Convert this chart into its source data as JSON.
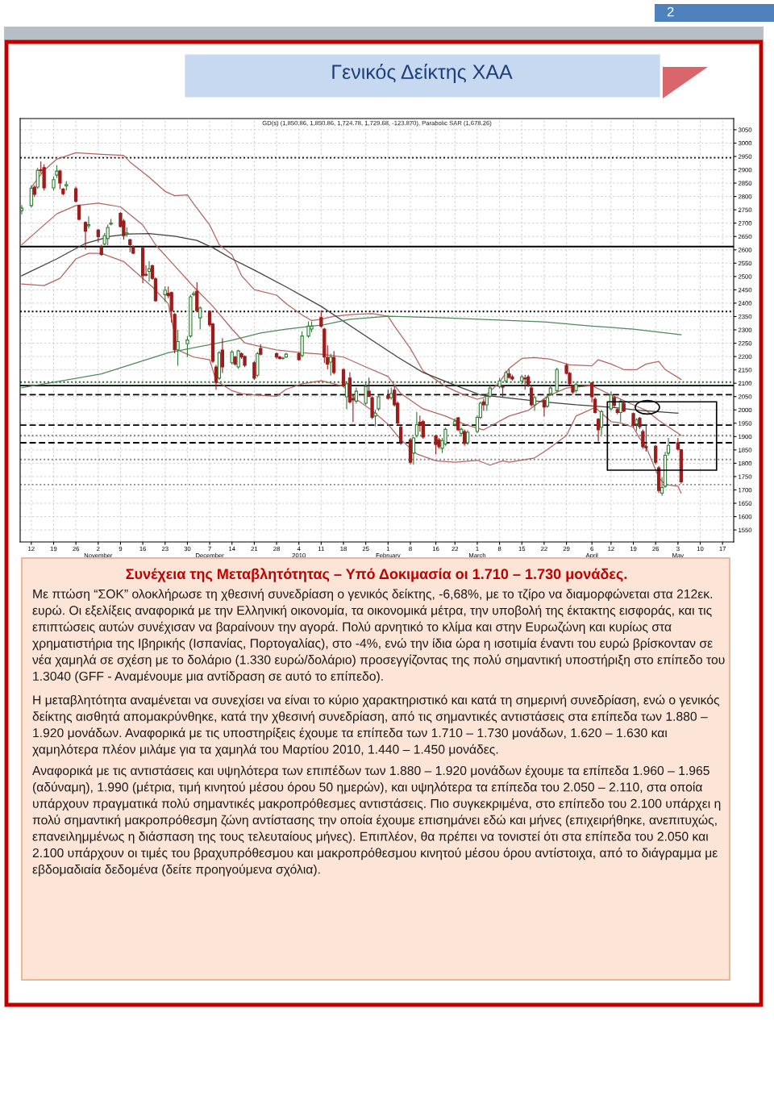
{
  "chart_data": {
    "type": "candlestick",
    "title": "Γενικός Δείκτης ΧΑΑ",
    "subtitle": "GD(s) (1,850.86, 1,850.86, 1,724.78, 1,729.68, -123.870), Parabolic SAR (1,678.26)",
    "annotations": [
      "Συνέχεια της Μεταβλητότητας – Υπό Δοκιμασία οι 1.710 – 1.730 μονάδες.",
      "Με πτώση “ΣΟΚ” ολοκλήρωσε τη χθεσινή συνεδρίαση ο γενικός δείκτης, -6,68%, με το τζίρο να διαμορφώνεται στα 212εκ. ευρώ. Οι εξελίξεις αναφορικά με την Ελληνική οικονομία, τα οικονομικά μέτρα, την υποβολή της έκτακτης εισφοράς, και τις επιπτώσεις αυτών συνέχισαν να βαραίνουν την αγορά. Πολύ αρνητικό το κλίμα και στην Ευρωζώνη και κυρίως στα χρηματιστήρια της Ιβηρικής (Ισπανίας, Πορτογαλίας), στο -4%, ενώ την ίδια ώρα η ισοτιμία έναντι του ευρώ βρίσκονταν σε νέα χαμηλά σε σχέση με το δολάριο (1.330 ευρώ/δολάριο) προσεγγίζοντας της πολύ σημαντική υποστήριξη στο επίπεδο του 1.3040 (GFF - Αναμένουμε μια αντίδραση σε αυτό το επίπεδο).",
      "Η μεταβλητότητα αναμένεται να συνεχίσει να είναι το κύριο χαρακτηριστικό και κατά τη σημερινή συνεδρίαση, ενώ ο γενικός δείκτης αισθητά απομακρύνθηκε, κατά την χθεσινή συνεδρίαση, από τις σημαντικές αντιστάσεις στα επίπεδα των 1.880 – 1.920 μονάδων. Αναφορικά με τις υποστηρίξεις έχουμε τα επίπεδα των 1.710 – 1.730 μονάδων, 1.620 – 1.630 και χαμηλότερα πλέον μιλάμε για τα χαμηλά του Μαρτίου 2010, 1.440 – 1.450 μονάδες.",
      "Αναφορικά με τις αντιστάσεις και υψηλότερα των επιπέδων των 1.880 – 1.920 μονάδων έχουμε τα επίπεδα 1.960 – 1.965 (αδύναμη), 1.990 (μέτρια, τιμή κινητού μέσου όρου 50 ημερών), και υψηλότερα τα επίπεδα του 2.050 – 2.110, στα οποία υπάρχουν πραγματικά πολύ σημαντικές μακροπρόθεσμες αντιστάσεις. Πιο συγκεκριμένα, στο επίπεδο του 2.100 υπάρχει η πολύ σημαντική μακροπρόθεσμη ζώνη αντίστασης την οποία έχουμε επισημάνει εδώ και μήνες (επιχειρήθηκε, ανεπιτυχώς, επανειλημμένως η διάσπαση της τους τελευταίους μήνες). Επιπλέον, θα πρέπει να τονιστεί ότι στα επίπεδα του 2.050 και 2.100 υπάρχουν οι τιμές του βραχυπρόθεσμου και μακροπρόθεσμου κινητού μέσου όρου αντίστοιχα, από το διάγραμμα με εβδομαδιαία δεδομένα (δείτε προηγούμενα σχόλια).",
      "2"
    ],
    "x": [
      "2009-10-09",
      "2009-10-12",
      "2009-10-13",
      "2009-10-14",
      "2009-10-15",
      "2009-10-16",
      "2009-10-19",
      "2009-10-20",
      "2009-10-21",
      "2009-10-22",
      "2009-10-23",
      "2009-10-26",
      "2009-10-27",
      "2009-10-29",
      "2009-10-30",
      "2009-11-02",
      "2009-11-03",
      "2009-11-04",
      "2009-11-05",
      "2009-11-06",
      "2009-11-09",
      "2009-11-10",
      "2009-11-11",
      "2009-11-12",
      "2009-11-13",
      "2009-11-16",
      "2009-11-17",
      "2009-11-18",
      "2009-11-19",
      "2009-11-20",
      "2009-11-23",
      "2009-11-24",
      "2009-11-25",
      "2009-11-26",
      "2009-11-27",
      "2009-11-30",
      "2009-12-01",
      "2009-12-02",
      "2009-12-03",
      "2009-12-04",
      "2009-12-07",
      "2009-12-08",
      "2009-12-09",
      "2009-12-10",
      "2009-12-11",
      "2009-12-14",
      "2009-12-15",
      "2009-12-16",
      "2009-12-17",
      "2009-12-18",
      "2009-12-21",
      "2009-12-22",
      "2009-12-23",
      "2009-12-28",
      "2009-12-29",
      "2009-12-30",
      "2009-12-31",
      "2010-01-04",
      "2010-01-05",
      "2010-01-07",
      "2010-01-08",
      "2010-01-11",
      "2010-01-12",
      "2010-01-13",
      "2010-01-14",
      "2010-01-15",
      "2010-01-18",
      "2010-01-19",
      "2010-01-20",
      "2010-01-21",
      "2010-01-22",
      "2010-01-25",
      "2010-01-26",
      "2010-01-27",
      "2010-01-28",
      "2010-01-29",
      "2010-02-01",
      "2010-02-02",
      "2010-02-03",
      "2010-02-04",
      "2010-02-05",
      "2010-02-08",
      "2010-02-09",
      "2010-02-10",
      "2010-02-11",
      "2010-02-12",
      "2010-02-16",
      "2010-02-17",
      "2010-02-18",
      "2010-02-19",
      "2010-02-22",
      "2010-02-23",
      "2010-02-24",
      "2010-02-25",
      "2010-02-26",
      "2010-03-01",
      "2010-03-02",
      "2010-03-03",
      "2010-03-04",
      "2010-03-05",
      "2010-03-08",
      "2010-03-09",
      "2010-03-10",
      "2010-03-11",
      "2010-03-12",
      "2010-03-15",
      "2010-03-16",
      "2010-03-17",
      "2010-03-18",
      "2010-03-19",
      "2010-03-22",
      "2010-03-23",
      "2010-03-24",
      "2010-03-26",
      "2010-03-29",
      "2010-03-30",
      "2010-03-31",
      "2010-04-01",
      "2010-04-06",
      "2010-04-07",
      "2010-04-08",
      "2010-04-09",
      "2010-04-12",
      "2010-04-13",
      "2010-04-14",
      "2010-04-15",
      "2010-04-16",
      "2010-04-19",
      "2010-04-20",
      "2010-04-21",
      "2010-04-22",
      "2010-04-23",
      "2010-04-26",
      "2010-04-27",
      "2010-04-28",
      "2010-04-29",
      "2010-04-30",
      "2010-05-03",
      "2010-05-04"
    ],
    "ohlc": [
      [
        2747,
        2766,
        2735,
        2756
      ],
      [
        2766,
        2840,
        2760,
        2831
      ],
      [
        2835,
        2840,
        2800,
        2808
      ],
      [
        2835,
        2905,
        2830,
        2898
      ],
      [
        2900,
        2929,
        2887,
        2897
      ],
      [
        2908,
        2919,
        2824,
        2832
      ],
      [
        2832,
        2874,
        2824,
        2863
      ],
      [
        2880,
        2916,
        2871,
        2895
      ],
      [
        2895,
        2898,
        2829,
        2850
      ],
      [
        2827,
        2830,
        2806,
        2810
      ],
      [
        2840,
        2856,
        2824,
        2845
      ],
      [
        2829,
        2835,
        2779,
        2782
      ],
      [
        2766,
        2768,
        2712,
        2714
      ],
      [
        2703,
        2705,
        2603,
        2670
      ],
      [
        2690,
        2724,
        2682,
        2694
      ],
      [
        2674,
        2677,
        2630,
        2649
      ],
      [
        2611,
        2617,
        2580,
        2582
      ],
      [
        2621,
        2661,
        2619,
        2653
      ],
      [
        2642,
        2693,
        2619,
        2684
      ],
      [
        2696,
        2714,
        2693,
        2700
      ],
      [
        2737,
        2740,
        2685,
        2687
      ],
      [
        2708,
        2714,
        2640,
        2653
      ],
      [
        2659,
        2682,
        2651,
        2663
      ],
      [
        2638,
        2640,
        2593,
        2619
      ],
      [
        2611,
        2614,
        2585,
        2587
      ],
      [
        2606,
        2609,
        2477,
        2503
      ],
      [
        2508,
        2540,
        2503,
        2505
      ],
      [
        2519,
        2556,
        2482,
        2529
      ],
      [
        2540,
        2543,
        2490,
        2493
      ],
      [
        2491,
        2495,
        2407,
        2409
      ],
      [
        2432,
        2461,
        2407,
        2449
      ],
      [
        2437,
        2461,
        2420,
        2428
      ],
      [
        2440,
        2442,
        2330,
        2372
      ],
      [
        2358,
        2361,
        2214,
        2225
      ],
      [
        2225,
        2298,
        2167,
        2256
      ],
      [
        2248,
        2275,
        2200,
        2262
      ],
      [
        2277,
        2430,
        2272,
        2424
      ],
      [
        2432,
        2443,
        2428,
        2437
      ],
      [
        2445,
        2477,
        2369,
        2372
      ],
      [
        2345,
        2387,
        2303,
        2382
      ],
      [
        2369,
        2372,
        2314,
        2319
      ],
      [
        2322,
        2325,
        2177,
        2182
      ],
      [
        2161,
        2167,
        2077,
        2103
      ],
      [
        2119,
        2219,
        2114,
        2214
      ],
      [
        2224,
        2267,
        2140,
        2161
      ],
      [
        2177,
        2222,
        2172,
        2217
      ],
      [
        2198,
        2201,
        2167,
        2172
      ],
      [
        2161,
        2224,
        2156,
        2221
      ],
      [
        2211,
        2214,
        2193,
        2198
      ],
      [
        2200,
        2203,
        2162,
        2167
      ],
      [
        2177,
        2182,
        2114,
        2119
      ],
      [
        2130,
        2216,
        2125,
        2211
      ],
      [
        2230,
        2245,
        2206,
        2209
      ],
      [
        2211,
        2214,
        2193,
        2198
      ],
      [
        2198,
        2201,
        2190,
        2193
      ],
      [
        2193,
        2196,
        2190,
        2194
      ],
      [
        2198,
        2212,
        2196,
        2209
      ],
      [
        2211,
        2214,
        2185,
        2188
      ],
      [
        2204,
        2293,
        2199,
        2277
      ],
      [
        2277,
        2330,
        2272,
        2314
      ],
      [
        2303,
        2330,
        2293,
        2314
      ],
      [
        2346,
        2372,
        2309,
        2314
      ],
      [
        2303,
        2306,
        2177,
        2198
      ],
      [
        2196,
        2240,
        2154,
        2172
      ],
      [
        2179,
        2209,
        2130,
        2198
      ],
      [
        2196,
        2219,
        2135,
        2140
      ],
      [
        2151,
        2154,
        2088,
        2091
      ],
      [
        2049,
        2103,
        2004,
        2098
      ],
      [
        2119,
        2140,
        2025,
        2030
      ],
      [
        2043,
        2054,
        1956,
        2037
      ],
      [
        2033,
        2082,
        2025,
        2070
      ],
      [
        2025,
        2103,
        2020,
        2088
      ],
      [
        2070,
        2119,
        2049,
        2051
      ],
      [
        2046,
        2049,
        1967,
        1972
      ],
      [
        1977,
        1998,
        1940,
        1988
      ],
      [
        2004,
        2054,
        1998,
        2049
      ],
      [
        2053,
        2075,
        2040,
        2043
      ],
      [
        2046,
        2082,
        2040,
        2061
      ],
      [
        2074,
        2088,
        2014,
        2019
      ],
      [
        2025,
        2030,
        1946,
        1951
      ],
      [
        1935,
        1940,
        1870,
        1880
      ],
      [
        1888,
        1893,
        1798,
        1804
      ],
      [
        1838,
        1898,
        1796,
        1895
      ],
      [
        1904,
        1991,
        1898,
        1944
      ],
      [
        1954,
        1977,
        1920,
        1944
      ],
      [
        1956,
        1961,
        1893,
        1898
      ],
      [
        1902,
        1906,
        1835,
        1870
      ],
      [
        1888,
        1893,
        1856,
        1862
      ],
      [
        1856,
        1893,
        1840,
        1885
      ],
      [
        1872,
        1932,
        1867,
        1927
      ],
      [
        1946,
        1967,
        1940,
        1958
      ],
      [
        1970,
        1972,
        1922,
        1925
      ],
      [
        1912,
        1932,
        1903,
        1927
      ],
      [
        1919,
        1925,
        1867,
        1874
      ],
      [
        1877,
        1922,
        1870,
        1916
      ],
      [
        1919,
        1977,
        1914,
        1972
      ],
      [
        1972,
        2030,
        1967,
        2025
      ],
      [
        2030,
        2040,
        1998,
        2019
      ],
      [
        2019,
        2056,
        1998,
        2051
      ],
      [
        2051,
        2088,
        2046,
        2082
      ],
      [
        2088,
        2119,
        2082,
        2109
      ],
      [
        2088,
        2093,
        2051,
        2085
      ],
      [
        2109,
        2145,
        2103,
        2140
      ],
      [
        2135,
        2151,
        2119,
        2122
      ],
      [
        2124,
        2130,
        2112,
        2116
      ],
      [
        2109,
        2130,
        2098,
        2124
      ],
      [
        2119,
        2130,
        2077,
        2116
      ],
      [
        2124,
        2130,
        2088,
        2093
      ],
      [
        2082,
        2088,
        2014,
        2019
      ],
      [
        2019,
        2051,
        1998,
        2046
      ],
      [
        2035,
        2040,
        1977,
        2011
      ],
      [
        2014,
        2056,
        2009,
        2046
      ],
      [
        2061,
        2093,
        2056,
        2082
      ],
      [
        2072,
        2156,
        2067,
        2151
      ],
      [
        2167,
        2172,
        2135,
        2137
      ],
      [
        2137,
        2140,
        2093,
        2098
      ],
      [
        2088,
        2093,
        2061,
        2067
      ],
      [
        2072,
        2100,
        2067,
        2095
      ],
      [
        2101,
        2103,
        2030,
        2049
      ],
      [
        2040,
        2046,
        1988,
        1990
      ],
      [
        1965,
        1967,
        1883,
        1925
      ],
      [
        1935,
        1998,
        1909,
        1993
      ],
      [
        2004,
        2067,
        1998,
        2056
      ],
      [
        2046,
        2051,
        2009,
        2017
      ],
      [
        2001,
        2004,
        1985,
        1990
      ],
      [
        1990,
        2040,
        1956,
        2033
      ],
      [
        2025,
        2030,
        1993,
        1996
      ],
      [
        1986,
        1988,
        1935,
        1941
      ],
      [
        1948,
        1967,
        1922,
        1962
      ],
      [
        1969,
        1972,
        1930,
        1937
      ],
      [
        1919,
        1925,
        1856,
        1862
      ],
      [
        1862,
        1945,
        1845,
        1858
      ],
      [
        1864,
        1867,
        1798,
        1804
      ],
      [
        1783,
        1788,
        1690,
        1698
      ],
      [
        1688,
        1746,
        1680,
        1709
      ],
      [
        1714,
        1841,
        1709,
        1830
      ],
      [
        1838,
        1893,
        1830,
        1867
      ],
      [
        1877,
        1893,
        1849,
        1853
      ],
      [
        1851,
        1851,
        1725,
        1730
      ]
    ],
    "colors": [
      "#2e7d32",
      "#2e7d32",
      "#9b1c1c",
      "#2e7d32",
      "#9b1c1c",
      "#9b1c1c",
      "#2e7d32",
      "#2e7d32",
      "#9b1c1c",
      "#9b1c1c",
      "#2e7d32",
      "#9b1c1c",
      "#9b1c1c",
      "#9b1c1c",
      "#2e7d32",
      "#9b1c1c",
      "#9b1c1c",
      "#2e7d32",
      "#2e7d32",
      "#2e7d32",
      "#9b1c1c",
      "#9b1c1c",
      "#2e7d32",
      "#9b1c1c",
      "#9b1c1c",
      "#9b1c1c",
      "#9b1c1c",
      "#2e7d32",
      "#9b1c1c",
      "#9b1c1c",
      "#2e7d32",
      "#9b1c1c",
      "#9b1c1c",
      "#9b1c1c",
      "#2e7d32",
      "#2e7d32",
      "#2e7d32",
      "#2e7d32",
      "#9b1c1c",
      "#2e7d32",
      "#9b1c1c",
      "#9b1c1c",
      "#9b1c1c",
      "#2e7d32",
      "#9b1c1c",
      "#2e7d32",
      "#9b1c1c",
      "#2e7d32",
      "#9b1c1c",
      "#9b1c1c",
      "#9b1c1c",
      "#2e7d32",
      "#9b1c1c",
      "#9b1c1c",
      "#9b1c1c",
      "#2e7d32",
      "#2e7d32",
      "#9b1c1c",
      "#2e7d32",
      "#2e7d32",
      "#2e7d32",
      "#9b1c1c",
      "#9b1c1c",
      "#9b1c1c",
      "#2e7d32",
      "#9b1c1c",
      "#9b1c1c",
      "#2e7d32",
      "#9b1c1c",
      "#9b1c1c",
      "#2e7d32",
      "#2e7d32",
      "#9b1c1c",
      "#9b1c1c",
      "#2e7d32",
      "#2e7d32",
      "#9b1c1c",
      "#2e7d32",
      "#9b1c1c",
      "#9b1c1c",
      "#9b1c1c",
      "#9b1c1c",
      "#2e7d32",
      "#2e7d32",
      "#9b1c1c",
      "#9b1c1c",
      "#9b1c1c",
      "#9b1c1c",
      "#2e7d32",
      "#2e7d32",
      "#2e7d32",
      "#9b1c1c",
      "#2e7d32",
      "#9b1c1c",
      "#2e7d32",
      "#2e7d32",
      "#2e7d32",
      "#9b1c1c",
      "#2e7d32",
      "#2e7d32",
      "#2e7d32",
      "#9b1c1c",
      "#2e7d32",
      "#9b1c1c",
      "#9b1c1c",
      "#2e7d32",
      "#9b1c1c",
      "#9b1c1c",
      "#9b1c1c",
      "#2e7d32",
      "#9b1c1c",
      "#2e7d32",
      "#2e7d32",
      "#2e7d32",
      "#9b1c1c",
      "#9b1c1c",
      "#9b1c1c",
      "#2e7d32",
      "#9b1c1c",
      "#9b1c1c",
      "#9b1c1c",
      "#2e7d32",
      "#2e7d32",
      "#9b1c1c",
      "#9b1c1c",
      "#2e7d32",
      "#9b1c1c",
      "#9b1c1c",
      "#2e7d32",
      "#9b1c1c",
      "#9b1c1c",
      "#9b1c1c",
      "#9b1c1c",
      "#9b1c1c",
      "#2e7d32",
      "#2e7d32",
      "#2e7d32",
      "#9b1c1c",
      "#9b1c1c"
    ],
    "series": [
      {
        "type": "line",
        "color": "#b5655f",
        "x": [
          "2009-10-12",
          "2009-10-16",
          "2009-10-20",
          "2009-10-26",
          "2009-11-03",
          "2009-11-10",
          "2009-11-12",
          "2009-11-18",
          "2009-11-23",
          "2009-11-26",
          "2009-11-30",
          "2009-12-02",
          "2009-12-07",
          "2009-12-10",
          "2009-12-14",
          "2009-12-17",
          "2009-12-21",
          "2009-12-28",
          "2009-12-31",
          "2010-01-05",
          "2010-01-08",
          "2010-01-11",
          "2010-01-15",
          "2010-01-21",
          "2010-01-27",
          "2010-02-01",
          "2010-02-03",
          "2010-02-08",
          "2010-02-12",
          "2010-02-19",
          "2010-02-24",
          "2010-03-01",
          "2010-03-03",
          "2010-03-08",
          "2010-03-11",
          "2010-03-15",
          "2010-03-19",
          "2010-03-24",
          "2010-03-30",
          "2010-04-06",
          "2010-04-08",
          "2010-04-12",
          "2010-04-16",
          "2010-04-20",
          "2010-04-23",
          "2010-04-27",
          "2010-04-29",
          "2010-05-04"
        ],
        "values": [
          2835,
          2898,
          2940,
          2964,
          2958,
          2954,
          2929,
          2872,
          2819,
          2803,
          2806,
          2772,
          2693,
          2619,
          2582,
          2503,
          2451,
          2430,
          2398,
          2356,
          2335,
          2340,
          2351,
          2358,
          2361,
          2351,
          2314,
          2230,
          2146,
          2088,
          2061,
          2040,
          2046,
          2104,
          2156,
          2193,
          2196,
          2190,
          2169,
          2165,
          2188,
          2172,
          2151,
          2151,
          2172,
          2182,
          2151,
          2114
        ]
      },
      {
        "type": "line",
        "color": "#b5655f",
        "x": [
          "2009-10-09",
          "2009-10-20",
          "2009-10-26",
          "2009-11-02",
          "2009-11-09",
          "2009-11-16",
          "2009-11-20",
          "2009-11-26",
          "2009-12-02",
          "2009-12-08",
          "2009-12-14",
          "2009-12-18",
          "2009-12-22",
          "2009-12-28",
          "2010-01-05",
          "2010-01-11",
          "2010-01-18",
          "2010-01-25",
          "2010-02-01",
          "2010-02-05",
          "2010-02-12",
          "2010-02-19",
          "2010-02-25",
          "2010-03-03",
          "2010-03-11",
          "2010-03-17",
          "2010-03-23",
          "2010-03-29",
          "2010-04-06",
          "2010-04-12",
          "2010-04-19",
          "2010-04-23",
          "2010-04-27",
          "2010-05-04"
        ],
        "values": [
          2619,
          2735,
          2766,
          2775,
          2761,
          2693,
          2619,
          2540,
          2461,
          2388,
          2303,
          2251,
          2240,
          2225,
          2214,
          2209,
          2198,
          2161,
          2125,
          2061,
          2004,
          1977,
          1946,
          1925,
          1977,
          1998,
          2051,
          2082,
          2091,
          2056,
          2019,
          1998,
          1961,
          1904
        ]
      },
      {
        "type": "line",
        "color": "#b5655f",
        "x": [
          "2009-10-09",
          "2009-10-16",
          "2009-10-21",
          "2009-10-26",
          "2009-10-30",
          "2009-11-03",
          "2009-11-10",
          "2009-11-16",
          "2009-11-19",
          "2009-11-24",
          "2009-11-27",
          "2009-12-02",
          "2009-12-07",
          "2009-12-09",
          "2009-12-14",
          "2009-12-17",
          "2009-12-21",
          "2009-12-28",
          "2009-12-31",
          "2010-01-05",
          "2010-01-11",
          "2010-01-13",
          "2010-01-18",
          "2010-01-22",
          "2010-01-27",
          "2010-02-01",
          "2010-02-05",
          "2010-02-10",
          "2010-02-16",
          "2010-02-22",
          "2010-03-01",
          "2010-03-05",
          "2010-03-09",
          "2010-03-11",
          "2010-03-19",
          "2010-03-23",
          "2010-03-29",
          "2010-04-01",
          "2010-04-07",
          "2010-04-12",
          "2010-04-15",
          "2010-04-19",
          "2010-04-21",
          "2010-04-23",
          "2010-04-27",
          "2010-04-29",
          "2010-05-03",
          "2010-05-04"
        ],
        "values": [
          2472,
          2466,
          2493,
          2566,
          2587,
          2587,
          2556,
          2493,
          2461,
          2398,
          2225,
          2198,
          2188,
          2109,
          2072,
          2061,
          2056,
          2051,
          2077,
          2098,
          2109,
          2104,
          2088,
          2040,
          1998,
          1946,
          1888,
          1835,
          1809,
          1804,
          1811,
          1793,
          1809,
          1804,
          1820,
          1851,
          1904,
          1977,
          2009,
          1956,
          1951,
          1935,
          1893,
          1862,
          1746,
          1720,
          1714,
          1688
        ]
      },
      {
        "type": "line",
        "color": "#404040",
        "x": [
          "2009-10-09",
          "2009-10-20",
          "2009-10-29",
          "2009-11-06",
          "2009-11-12",
          "2009-11-18",
          "2009-11-26",
          "2009-12-03",
          "2009-12-08",
          "2009-12-14",
          "2009-12-21",
          "2009-12-31",
          "2010-01-11",
          "2010-01-19",
          "2010-01-27",
          "2010-02-04",
          "2010-02-12",
          "2010-02-23",
          "2010-03-02",
          "2010-03-10",
          "2010-03-22",
          "2010-04-01",
          "2010-04-13",
          "2010-04-21",
          "2010-05-03"
        ],
        "values": [
          2503,
          2566,
          2624,
          2651,
          2659,
          2661,
          2651,
          2635,
          2608,
          2566,
          2524,
          2461,
          2388,
          2324,
          2261,
          2198,
          2140,
          2088,
          2056,
          2046,
          2030,
          2019,
          2009,
          1998,
          1988
        ]
      },
      {
        "type": "line",
        "color": "#4f8a5a",
        "x": [
          "2009-10-09",
          "2009-11-03",
          "2009-11-24",
          "2009-12-14",
          "2009-12-23",
          "2009-12-31",
          "2010-01-12",
          "2010-01-20",
          "2010-02-01",
          "2010-02-19",
          "2010-03-11",
          "2010-03-22",
          "2010-04-06",
          "2010-04-19",
          "2010-05-04"
        ],
        "values": [
          2083,
          2135,
          2214,
          2261,
          2288,
          2303,
          2319,
          2340,
          2351,
          2345,
          2335,
          2330,
          2314,
          2303,
          2282
        ]
      }
    ],
    "ref_lines": [
      {
        "axis": "y",
        "value": 2945,
        "color": "#000000",
        "line_style": "dotted"
      },
      {
        "axis": "y",
        "value": 2612,
        "color": "#000000",
        "line_style": "solid"
      },
      {
        "axis": "y",
        "value": 2369,
        "color": "#000000",
        "line_style": "dotted"
      },
      {
        "axis": "y",
        "value": 2104,
        "color": "#1f6b2a",
        "line_style": "dotted"
      },
      {
        "axis": "y",
        "value": 2091,
        "color": "#000000",
        "line_style": "solid"
      },
      {
        "axis": "y",
        "value": 2057,
        "color": "#000000",
        "line_style": "dashed"
      },
      {
        "axis": "y",
        "value": 1943,
        "color": "#000000",
        "line_style": "dashed"
      },
      {
        "axis": "y",
        "value": 1904,
        "color": "#888888",
        "line_style": "dotted"
      },
      {
        "axis": "y",
        "value": 1877,
        "color": "#000000",
        "line_style": "dashed"
      },
      {
        "axis": "y",
        "value": 1814,
        "color": "#888888",
        "line_style": "dotted"
      },
      {
        "axis": "y",
        "value": 1720,
        "color": "#888888",
        "line_style": "dotted"
      }
    ],
    "xlim": [
      "2009-10-08T12:00",
      "2010-05-20T12:00"
    ],
    "xticks": [
      {
        "value": "2009-10-12",
        "label": "12"
      },
      {
        "value": "2009-10-19",
        "label": "19"
      },
      {
        "value": "2009-10-26",
        "label": "26"
      },
      {
        "value": "2009-11-02",
        "label": "2\nNovember"
      },
      {
        "value": "2009-11-09",
        "label": "9"
      },
      {
        "value": "2009-11-16",
        "label": "16"
      },
      {
        "value": "2009-11-23",
        "label": "23"
      },
      {
        "value": "2009-11-30",
        "label": "30"
      },
      {
        "value": "2009-12-07",
        "label": "7\nDecember"
      },
      {
        "value": "2009-12-14",
        "label": "14"
      },
      {
        "value": "2009-12-21",
        "label": "21"
      },
      {
        "value": "2009-12-28",
        "label": "28"
      },
      {
        "value": "2010-01-04",
        "label": "4\n2010"
      },
      {
        "value": "2010-01-11",
        "label": "11"
      },
      {
        "value": "2010-01-18",
        "label": "18"
      },
      {
        "value": "2010-01-25",
        "label": "25"
      },
      {
        "value": "2010-02-01",
        "label": "1\nFebruary"
      },
      {
        "value": "2010-02-08",
        "label": "8"
      },
      {
        "value": "2010-02-16",
        "label": "16"
      },
      {
        "value": "2010-02-22",
        "label": "22"
      },
      {
        "value": "2010-03-01",
        "label": "1\nMarch"
      },
      {
        "value": "2010-03-08",
        "label": "8"
      },
      {
        "value": "2010-03-15",
        "label": "15"
      },
      {
        "value": "2010-03-22",
        "label": "22"
      },
      {
        "value": "2010-03-29",
        "label": "29"
      },
      {
        "value": "2010-04-06",
        "label": "6\nApril"
      },
      {
        "value": "2010-04-12",
        "label": "12"
      },
      {
        "value": "2010-04-19",
        "label": "19"
      },
      {
        "value": "2010-04-26",
        "label": "26"
      },
      {
        "value": "2010-05-03",
        "label": "3\nMay"
      },
      {
        "value": "2010-05-10",
        "label": "10"
      },
      {
        "value": "2010-05-17",
        "label": "17"
      }
    ],
    "ylim": [
      1505,
      3092
    ],
    "yticks": [
      1550,
      1600,
      1650,
      1700,
      1750,
      1800,
      1850,
      1900,
      1950,
      2000,
      2050,
      2100,
      2150,
      2200,
      2250,
      2300,
      2350,
      2400,
      2450,
      2500,
      2550,
      2600,
      2650,
      2700,
      2750,
      2800,
      2850,
      2900,
      2950,
      3000,
      3050
    ],
    "grid": true
  }
}
